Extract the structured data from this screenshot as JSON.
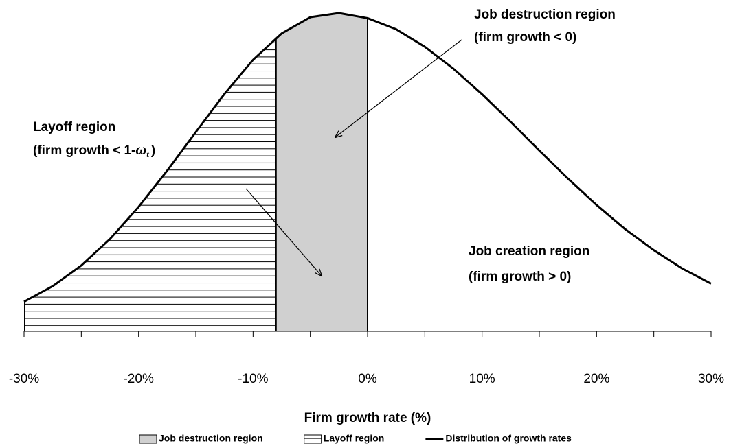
{
  "chart_data": {
    "type": "line",
    "x_label": "Firm growth rate (%)",
    "x": [
      -30,
      -27.5,
      -25,
      -22.5,
      -20,
      -17.5,
      -15,
      -12.5,
      -10,
      -7.5,
      -5,
      -2.5,
      0,
      2.5,
      5,
      7.5,
      10,
      12.5,
      15,
      17.5,
      20,
      22.5,
      25,
      27.5,
      30
    ],
    "series": [
      {
        "name": "Distribution of growth rates",
        "color": "#000000",
        "values": [
          9.3,
          14.2,
          20.7,
          29.0,
          39.1,
          50.5,
          62.6,
          74.6,
          85.3,
          93.6,
          98.7,
          100.0,
          98.4,
          94.9,
          89.4,
          82.5,
          74.5,
          65.8,
          56.8,
          48.0,
          39.7,
          32.1,
          25.5,
          19.7,
          15.0
        ]
      }
    ],
    "regions": [
      {
        "name": "Job destruction region",
        "from": -8,
        "to": 0,
        "color": "#d0d0d0"
      },
      {
        "name": "Layoff region",
        "from": -30,
        "to": -8,
        "pattern": "hlines"
      }
    ],
    "xlim": [
      -30,
      30
    ],
    "xticks": [
      {
        "value": -30,
        "label": "-30%"
      },
      {
        "value": -20,
        "label": "-20%"
      },
      {
        "value": -10,
        "label": "-10%"
      },
      {
        "value": 0,
        "label": "0%"
      },
      {
        "value": 10,
        "label": "10%"
      },
      {
        "value": 20,
        "label": "20%"
      },
      {
        "value": 30,
        "label": "30%"
      }
    ],
    "xminorticks": [
      -25,
      -15,
      -5,
      5,
      15,
      25
    ],
    "ylim": [
      0,
      100
    ],
    "annotations": [
      {
        "lines": [
          "Job destruction region",
          "(firm growth < 0)"
        ]
      },
      {
        "lines": [
          "Layoff region",
          [
            "(firm growth < 1-",
            "ω",
            "t",
            ")"
          ]
        ]
      },
      {
        "lines": [
          "Job creation region",
          "(firm growth > 0)"
        ]
      }
    ],
    "legend": "bottom"
  }
}
